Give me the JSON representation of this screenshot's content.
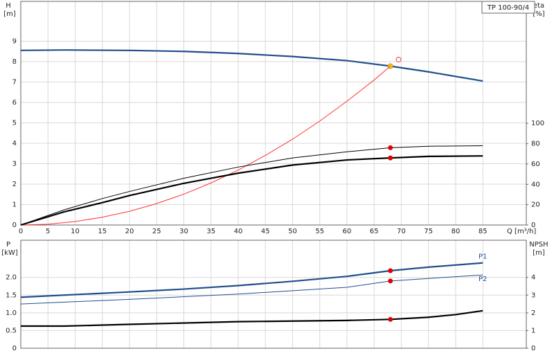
{
  "chart_data": [
    {
      "type": "line",
      "title": "TP 100-90/4",
      "ylabel": [
        "H",
        "[m]"
      ],
      "y2label": [
        "eta",
        "[%]"
      ],
      "xlabel": "Q [m³/h]",
      "xlim": [
        0,
        93
      ],
      "xticks": [
        0,
        5,
        10,
        15,
        20,
        25,
        30,
        35,
        40,
        45,
        50,
        55,
        60,
        65,
        70,
        75,
        80,
        85
      ],
      "xtick_labels": true,
      "ylim": [
        0,
        10.95
      ],
      "yticks": [
        0,
        1,
        2,
        3,
        4,
        5,
        6,
        7,
        8,
        9
      ],
      "y2lim": [
        0,
        220
      ],
      "y2ticks": [
        0,
        20,
        40,
        60,
        80,
        100
      ],
      "grid": true,
      "series": [
        {
          "color": "#1f4e8c",
          "style": "thick",
          "x": [
            0,
            8,
            20,
            30,
            40,
            50,
            60,
            68,
            75,
            85
          ],
          "values": [
            8.55,
            8.57,
            8.55,
            8.5,
            8.4,
            8.25,
            8.05,
            7.78,
            7.5,
            7.05
          ],
          "markers": [
            {
              "x": 68,
              "y": 7.78,
              "color": "#f5c518"
            }
          ]
        },
        {
          "color": "#ff3030",
          "style": "thin",
          "x": [
            0,
            5,
            10,
            15,
            20,
            25,
            30,
            35,
            40,
            45,
            50,
            55,
            60,
            65,
            68
          ],
          "values": [
            0,
            0.04,
            0.17,
            0.38,
            0.67,
            1.05,
            1.51,
            2.06,
            2.69,
            3.41,
            4.2,
            5.09,
            6.06,
            7.1,
            7.78
          ],
          "markers": [
            {
              "x": 69.5,
              "y": 8.1,
              "color": "#ff3030",
              "open": true
            }
          ]
        },
        {
          "color": "#000000",
          "style": "thin",
          "axis": "y2",
          "x": [
            0,
            8,
            15,
            20,
            30,
            40,
            50,
            60,
            68,
            75,
            85
          ],
          "values": [
            0,
            15,
            26,
            33,
            46,
            57,
            66,
            72,
            76,
            77.5,
            78
          ],
          "markers": [
            {
              "x": 68,
              "y": 76,
              "color": "#e00000"
            }
          ]
        },
        {
          "color": "#000000",
          "style": "thick",
          "axis": "y2",
          "x": [
            0,
            8,
            15,
            20,
            30,
            40,
            50,
            60,
            68,
            75,
            85
          ],
          "values": [
            0,
            13,
            22,
            29,
            41,
            51,
            59,
            64,
            66,
            67.5,
            68
          ],
          "markers": [
            {
              "x": 68,
              "y": 66,
              "color": "#e00000"
            }
          ]
        }
      ]
    },
    {
      "type": "line",
      "ylabel": [
        "P",
        "[kW]"
      ],
      "y2label": [
        "NPSH",
        "[m]"
      ],
      "xlim": [
        0,
        93
      ],
      "xticks": [
        0,
        5,
        10,
        15,
        20,
        25,
        30,
        35,
        40,
        45,
        50,
        55,
        60,
        65,
        70,
        75,
        80,
        85
      ],
      "xtick_labels": false,
      "ylim": [
        0,
        3.05
      ],
      "yticks": [
        0,
        0.5,
        {
          "value": 1,
          "label": "1.0"
        },
        1.5,
        {
          "value": 2,
          "label": "2.0"
        }
      ],
      "y2lim": [
        0,
        6.1
      ],
      "y2ticks": [
        0,
        1,
        2,
        3,
        4
      ],
      "grid": true,
      "series": [
        {
          "name": "P1",
          "color": "#1f4e8c",
          "style": "thick",
          "x": [
            0,
            8,
            20,
            30,
            40,
            50,
            60,
            68,
            75,
            85
          ],
          "values": [
            1.44,
            1.5,
            1.59,
            1.67,
            1.77,
            1.89,
            2.03,
            2.19,
            2.29,
            2.41
          ],
          "markers": [
            {
              "x": 68,
              "y": 2.19,
              "color": "#e00000"
            }
          ]
        },
        {
          "name": "P2",
          "color": "#1f4e8c",
          "style": "thin",
          "x": [
            0,
            20,
            40,
            60,
            68,
            85
          ],
          "values": [
            1.25,
            1.38,
            1.53,
            1.72,
            1.9,
            2.07
          ],
          "markers": [
            {
              "x": 68,
              "y": 1.9,
              "color": "#e00000"
            }
          ]
        },
        {
          "color": "#000000",
          "style": "thick",
          "axis": "y2",
          "x": [
            0,
            8,
            20,
            40,
            60,
            68,
            75,
            80,
            85
          ],
          "values": [
            1.25,
            1.25,
            1.35,
            1.5,
            1.57,
            1.63,
            1.75,
            1.9,
            2.12
          ],
          "markers": [
            {
              "x": 68,
              "y": 1.63,
              "color": "#e00000"
            }
          ]
        }
      ]
    }
  ]
}
